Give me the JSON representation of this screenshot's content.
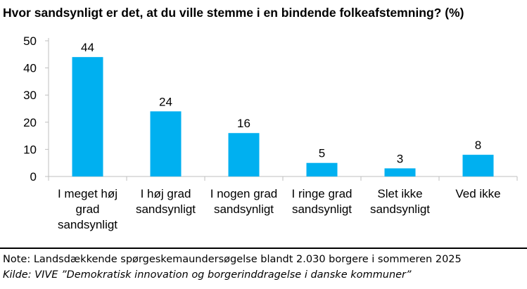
{
  "chart_data": {
    "type": "bar",
    "title": "Hvor sandsynligt er det, at du ville stemme i en bindende folkeafstemning? (%)",
    "categories": [
      [
        "I meget høj",
        "grad",
        "sandsynligt"
      ],
      [
        "I høj grad",
        "sandsynligt"
      ],
      [
        "I nogen grad",
        "sandsynligt"
      ],
      [
        "I ringe grad",
        "sandsynligt"
      ],
      [
        "Slet ikke",
        "sandsynligt"
      ],
      [
        "Ved ikke"
      ]
    ],
    "values": [
      44,
      24,
      16,
      5,
      3,
      8
    ],
    "ylim": [
      0,
      50
    ],
    "yticks": [
      0,
      10,
      20,
      30,
      40,
      50
    ],
    "bar_color": "#00B0F0",
    "grid": false,
    "xlabel": "",
    "ylabel": ""
  },
  "footer": {
    "note": "Note: Landsdækkende spørgeskemaundersøgelse blandt 2.030 borgere i sommeren 2025",
    "source": "Kilde: VIVE ”Demokratisk innovation og borgerinddragelse i danske kommuner”"
  }
}
